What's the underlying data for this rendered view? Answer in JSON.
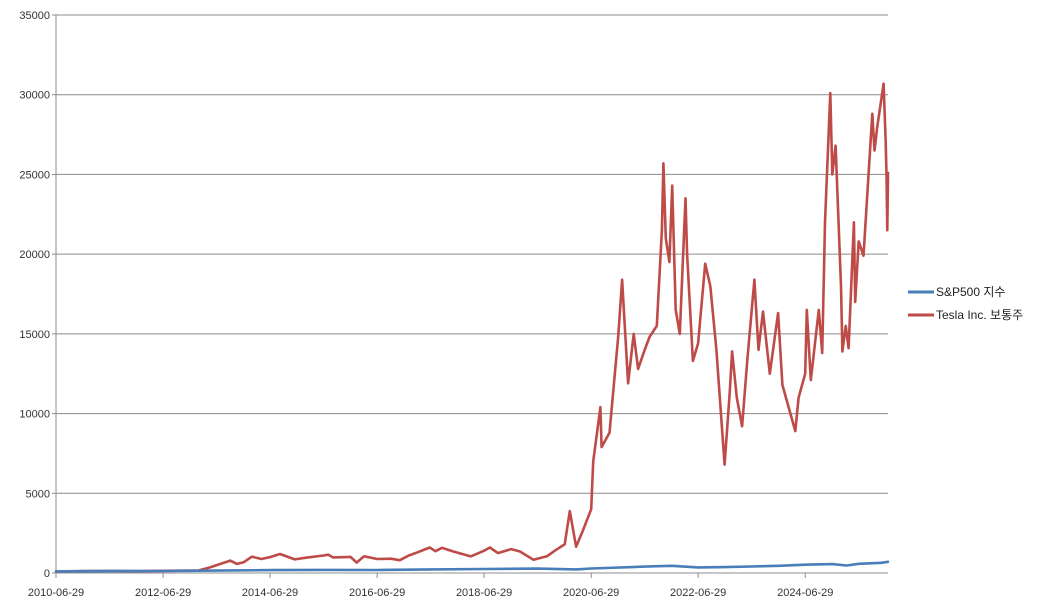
{
  "chart_data": {
    "type": "line",
    "title": "",
    "xlabel": "",
    "ylabel": "",
    "ylim": [
      0,
      35000
    ],
    "xlim": [
      "2010-06-29",
      "2026-01-15"
    ],
    "y_ticks": [
      0,
      5000,
      10000,
      15000,
      20000,
      25000,
      30000,
      35000
    ],
    "y_tick_labels": [
      "0",
      "5000",
      "10000",
      "15000",
      "20000",
      "25000",
      "30000",
      "35000"
    ],
    "x_ticks": [
      "2010-06-29",
      "2012-06-29",
      "2014-06-29",
      "2016-06-29",
      "2018-06-29",
      "2020-06-29",
      "2022-06-29",
      "2024-06-29"
    ],
    "grid": "horizontal",
    "legend_position": "right",
    "series": [
      {
        "name": "S&P500 지수",
        "color": "#4a7ebb",
        "points": [
          [
            "2010-06-29",
            100
          ],
          [
            "2011-06-29",
            120
          ],
          [
            "2012-06-29",
            125
          ],
          [
            "2013-06-29",
            150
          ],
          [
            "2014-06-29",
            180
          ],
          [
            "2015-06-29",
            195
          ],
          [
            "2016-06-29",
            190
          ],
          [
            "2017-06-29",
            225
          ],
          [
            "2018-06-29",
            250
          ],
          [
            "2019-06-29",
            275
          ],
          [
            "2020-03-20",
            225
          ],
          [
            "2020-06-29",
            285
          ],
          [
            "2021-06-29",
            400
          ],
          [
            "2021-12-31",
            450
          ],
          [
            "2022-06-29",
            350
          ],
          [
            "2022-12-31",
            370
          ],
          [
            "2023-06-29",
            410
          ],
          [
            "2023-12-31",
            450
          ],
          [
            "2024-06-29",
            520
          ],
          [
            "2024-12-31",
            560
          ],
          [
            "2025-04-08",
            470
          ],
          [
            "2025-07-01",
            580
          ],
          [
            "2025-12-01",
            640
          ],
          [
            "2026-01-15",
            700
          ]
        ]
      },
      {
        "name": "Tesla Inc. 보통주",
        "color": "#be4b48",
        "points": [
          [
            "2010-06-29",
            100
          ],
          [
            "2010-12-31",
            120
          ],
          [
            "2011-06-29",
            130
          ],
          [
            "2011-12-31",
            110
          ],
          [
            "2012-06-29",
            140
          ],
          [
            "2012-12-31",
            150
          ],
          [
            "2013-03-01",
            160
          ],
          [
            "2013-05-15",
            350
          ],
          [
            "2013-09-30",
            780
          ],
          [
            "2013-11-15",
            570
          ],
          [
            "2013-12-31",
            680
          ],
          [
            "2014-02-25",
            1020
          ],
          [
            "2014-05-01",
            880
          ],
          [
            "2014-06-29",
            1000
          ],
          [
            "2014-09-05",
            1190
          ],
          [
            "2014-12-15",
            850
          ],
          [
            "2015-03-01",
            960
          ],
          [
            "2015-06-29",
            1100
          ],
          [
            "2015-08-01",
            1150
          ],
          [
            "2015-09-01",
            980
          ],
          [
            "2015-12-31",
            1010
          ],
          [
            "2016-02-10",
            650
          ],
          [
            "2016-04-01",
            1050
          ],
          [
            "2016-06-29",
            880
          ],
          [
            "2016-10-01",
            900
          ],
          [
            "2016-12-01",
            800
          ],
          [
            "2017-01-31",
            1100
          ],
          [
            "2017-04-01",
            1300
          ],
          [
            "2017-06-23",
            1600
          ],
          [
            "2017-08-01",
            1370
          ],
          [
            "2017-09-15",
            1580
          ],
          [
            "2017-12-01",
            1350
          ],
          [
            "2018-03-30",
            1040
          ],
          [
            "2018-06-29",
            1400
          ],
          [
            "2018-08-08",
            1600
          ],
          [
            "2018-10-01",
            1250
          ],
          [
            "2018-12-31",
            1500
          ],
          [
            "2019-03-01",
            1350
          ],
          [
            "2019-06-01",
            830
          ],
          [
            "2019-09-01",
            1050
          ],
          [
            "2019-10-25",
            1400
          ],
          [
            "2019-12-31",
            1800
          ],
          [
            "2020-02-04",
            3880
          ],
          [
            "2020-03-18",
            1650
          ],
          [
            "2020-05-01",
            2600
          ],
          [
            "2020-06-29",
            4000
          ],
          [
            "2020-07-13",
            6980
          ],
          [
            "2020-08-31",
            10400
          ],
          [
            "2020-09-08",
            7900
          ],
          [
            "2020-11-01",
            8800
          ],
          [
            "2020-12-31",
            14900
          ],
          [
            "2021-01-26",
            18400
          ],
          [
            "2021-03-08",
            11900
          ],
          [
            "2021-04-15",
            15000
          ],
          [
            "2021-05-15",
            12800
          ],
          [
            "2021-06-29",
            14000
          ],
          [
            "2021-08-01",
            14800
          ],
          [
            "2021-09-20",
            15500
          ],
          [
            "2021-10-25",
            21500
          ],
          [
            "2021-11-04",
            25700
          ],
          [
            "2021-11-20",
            21000
          ],
          [
            "2021-12-15",
            19500
          ],
          [
            "2022-01-03",
            24300
          ],
          [
            "2022-01-27",
            16500
          ],
          [
            "2022-02-24",
            15000
          ],
          [
            "2022-04-04",
            23500
          ],
          [
            "2022-04-15",
            20000
          ],
          [
            "2022-05-24",
            13300
          ],
          [
            "2022-06-29",
            14400
          ],
          [
            "2022-08-16",
            19400
          ],
          [
            "2022-09-20",
            18000
          ],
          [
            "2022-11-01",
            14000
          ],
          [
            "2022-12-27",
            6800
          ],
          [
            "2023-01-31",
            11400
          ],
          [
            "2023-02-16",
            13900
          ],
          [
            "2023-03-20",
            11000
          ],
          [
            "2023-04-25",
            9200
          ],
          [
            "2023-06-01",
            13500
          ],
          [
            "2023-07-18",
            18400
          ],
          [
            "2023-08-15",
            14000
          ],
          [
            "2023-09-15",
            16400
          ],
          [
            "2023-10-31",
            12500
          ],
          [
            "2023-12-27",
            16300
          ],
          [
            "2024-01-25",
            11800
          ],
          [
            "2024-04-22",
            8900
          ],
          [
            "2024-05-15",
            11000
          ],
          [
            "2024-06-29",
            12500
          ],
          [
            "2024-07-10",
            16500
          ],
          [
            "2024-08-06",
            12100
          ],
          [
            "2024-09-30",
            16500
          ],
          [
            "2024-10-23",
            13800
          ],
          [
            "2024-11-11",
            22000
          ],
          [
            "2024-12-17",
            30100
          ],
          [
            "2024-12-31",
            25000
          ],
          [
            "2025-01-22",
            26800
          ],
          [
            "2025-02-28",
            18000
          ],
          [
            "2025-03-10",
            13900
          ],
          [
            "2025-04-01",
            15500
          ],
          [
            "2025-04-21",
            14100
          ],
          [
            "2025-05-27",
            22000
          ],
          [
            "2025-06-05",
            17000
          ],
          [
            "2025-06-29",
            20800
          ],
          [
            "2025-08-01",
            19900
          ],
          [
            "2025-09-30",
            28800
          ],
          [
            "2025-10-15",
            26500
          ],
          [
            "2025-11-03",
            28000
          ],
          [
            "2025-12-16",
            30700
          ],
          [
            "2025-12-30",
            27000
          ],
          [
            "2026-01-05",
            25000
          ],
          [
            "2026-01-10",
            21500
          ],
          [
            "2026-01-15",
            25100
          ]
        ]
      }
    ]
  }
}
